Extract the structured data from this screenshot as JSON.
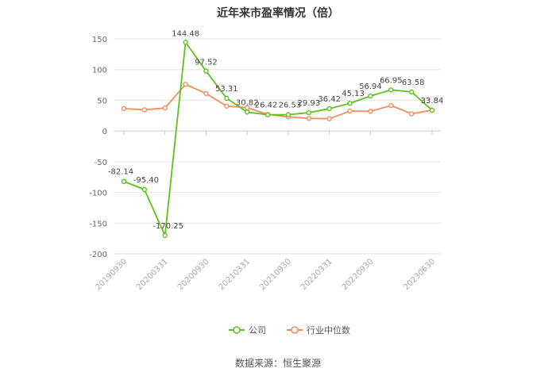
{
  "chart_data": {
    "type": "line",
    "title": "近年来市盈率情况（倍）",
    "source": "数据来源：恒生聚源",
    "ylim": [
      -200,
      150
    ],
    "yticks": [
      150,
      100,
      50,
      0,
      -50,
      -100,
      -150,
      -200
    ],
    "grid": true,
    "legend_position": "bottom",
    "x": [
      "20190930",
      "20191231",
      "20200331",
      "20200630",
      "20200930",
      "20201231",
      "20210331",
      "20210630",
      "20210930",
      "20211231",
      "20220331",
      "20220630",
      "20220930",
      "20221231",
      "20230331",
      "20230630"
    ],
    "x_tick_labels": [
      "20190930",
      "20200331",
      "20200930",
      "20210331",
      "20210930",
      "20220331",
      "20220930",
      "20230630"
    ],
    "series": [
      {
        "name": "公司",
        "color": "#5ac21a",
        "values": [
          -82.14,
          -95.4,
          -170.25,
          144.48,
          97.52,
          53.31,
          30.82,
          26.42,
          26.53,
          29.93,
          36.42,
          45.13,
          56.94,
          66.95,
          63.58,
          33.84
        ],
        "labels": [
          "-82.14",
          "-95.40",
          "-170.25",
          "144.48",
          "97.52",
          "53.31",
          "30.82",
          "26.42",
          "26.53",
          "29.93",
          "36.42",
          "45.13",
          "56.94",
          "66.95",
          "63.58",
          "33.84"
        ]
      },
      {
        "name": "行业中位数",
        "color": "#f58b5b",
        "values": [
          36.5,
          34.5,
          37.5,
          76.0,
          61.0,
          40.5,
          38.0,
          27.0,
          23.0,
          20.5,
          20.0,
          32.5,
          32.0,
          41.5,
          28.0,
          34.0
        ]
      }
    ]
  }
}
